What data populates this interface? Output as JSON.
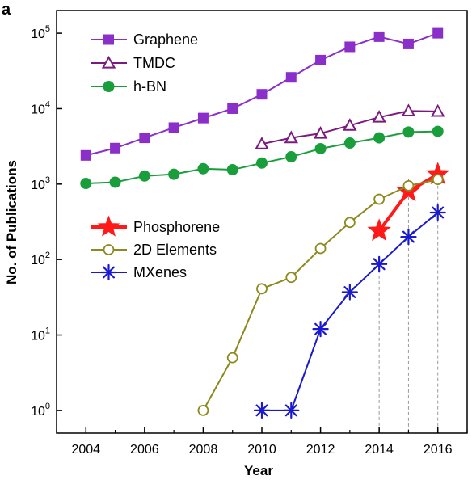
{
  "chart_data": {
    "type": "line",
    "panel_label": "a",
    "title": "",
    "xlabel": "Year",
    "ylabel": "No. of Publications",
    "y_scale": "log",
    "xlim": [
      2003.0,
      2017.0
    ],
    "ylim": [
      0.5,
      200000
    ],
    "x_ticks": [
      2004,
      2006,
      2008,
      2010,
      2012,
      2014,
      2016
    ],
    "y_ticks": [
      {
        "value": 1,
        "label_base": "10",
        "label_exp": "0"
      },
      {
        "value": 10,
        "label_base": "10",
        "label_exp": "1"
      },
      {
        "value": 100,
        "label_base": "10",
        "label_exp": "2"
      },
      {
        "value": 1000,
        "label_base": "10",
        "label_exp": "3"
      },
      {
        "value": 10000,
        "label_base": "10",
        "label_exp": "4"
      },
      {
        "value": 100000,
        "label_base": "10",
        "label_exp": "5"
      }
    ],
    "grid": false,
    "legend_groups": [
      {
        "placement": "top-left",
        "series": [
          "Graphene",
          "TMDC",
          "h-BN"
        ]
      },
      {
        "placement": "middle-left",
        "series": [
          "Phosphorene",
          "2D Elements",
          "MXenes"
        ]
      }
    ],
    "series": [
      {
        "name": "Graphene",
        "color": "#8b2fc9",
        "marker": "filled-square",
        "x": [
          2004,
          2005,
          2006,
          2007,
          2008,
          2009,
          2010,
          2011,
          2012,
          2013,
          2014,
          2015,
          2016
        ],
        "y": [
          2400,
          3000,
          4100,
          5600,
          7500,
          10000,
          15500,
          26000,
          44000,
          66000,
          90000,
          72000,
          100000
        ]
      },
      {
        "name": "TMDC",
        "color": "#7b1a7e",
        "marker": "open-triangle",
        "x": [
          2010,
          2011,
          2012,
          2013,
          2014,
          2015,
          2016
        ],
        "y": [
          3400,
          4100,
          4700,
          6000,
          7700,
          9300,
          9200
        ]
      },
      {
        "name": "h-BN",
        "color": "#1a9e3c",
        "marker": "filled-circle",
        "x": [
          2004,
          2005,
          2006,
          2007,
          2008,
          2009,
          2010,
          2011,
          2012,
          2013,
          2014,
          2015,
          2016
        ],
        "y": [
          1020,
          1060,
          1280,
          1350,
          1600,
          1550,
          1900,
          2300,
          2950,
          3500,
          4100,
          4900,
          5000
        ]
      },
      {
        "name": "Phosphorene",
        "color": "#ff1a1a",
        "marker": "filled-star",
        "x": [
          2014,
          2015,
          2016
        ],
        "y": [
          240,
          800,
          1350
        ]
      },
      {
        "name": "2D Elements",
        "color": "#8c8a1e",
        "marker": "open-circle",
        "x": [
          2008,
          2009,
          2010,
          2011,
          2012,
          2013,
          2014,
          2015,
          2016
        ],
        "y": [
          1,
          5,
          41,
          58,
          140,
          310,
          630,
          950,
          1150
        ]
      },
      {
        "name": "MXenes",
        "color": "#1a1acc",
        "marker": "asterisk",
        "x": [
          2010,
          2011,
          2012,
          2013,
          2014,
          2015,
          2016
        ],
        "y": [
          1,
          1,
          12,
          37,
          87,
          200,
          420
        ]
      }
    ],
    "reference_lines": [
      {
        "style": "dashed",
        "color": "#9a9a9a",
        "x": 2014,
        "y_top": 87
      },
      {
        "style": "dashed",
        "color": "#9a9a9a",
        "x": 2015,
        "y_top": 950
      },
      {
        "style": "dashed",
        "color": "#9a9a9a",
        "x": 2016,
        "y_top": 1350
      }
    ]
  }
}
